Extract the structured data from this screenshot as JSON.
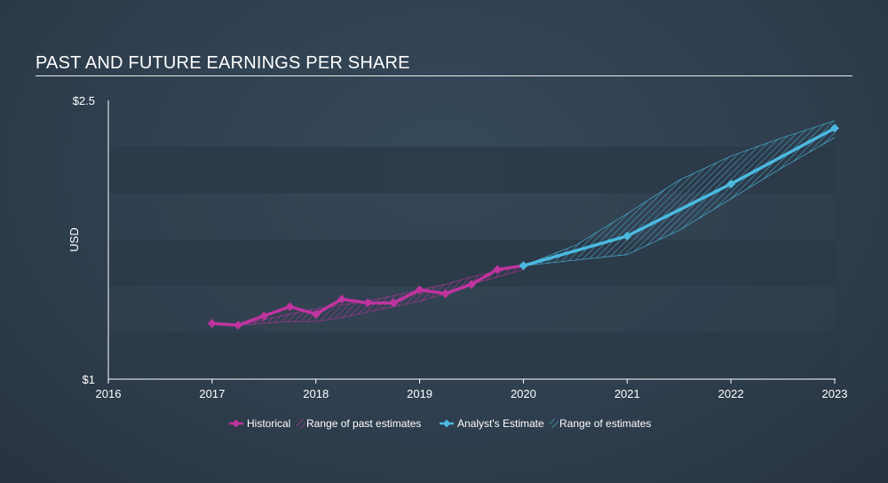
{
  "title": "PAST AND FUTURE EARNINGS PER SHARE",
  "colors": {
    "historical": "#c0349f",
    "estimate": "#4bb9e0",
    "band_dark": "#2c3a48",
    "band_light": "#33434f"
  },
  "chart_data": {
    "type": "line",
    "title": "PAST AND FUTURE EARNINGS PER SHARE",
    "ylabel": "USD",
    "xlabel": "",
    "y_tick_labels": [
      "$2.5",
      "$1"
    ],
    "ylim": [
      1.0,
      2.5
    ],
    "xlim": [
      2016.0,
      2023.0
    ],
    "x_ticks": [
      2016,
      2017,
      2018,
      2019,
      2020,
      2021,
      2022,
      2023
    ],
    "series": [
      {
        "name": "Historical",
        "x": [
          2017.0,
          2017.25,
          2017.5,
          2017.75,
          2018.0,
          2018.25,
          2018.5,
          2018.75,
          2019.0,
          2019.25,
          2019.5,
          2019.75,
          2020.0
        ],
        "y": [
          1.3,
          1.29,
          1.34,
          1.39,
          1.35,
          1.43,
          1.41,
          1.41,
          1.48,
          1.46,
          1.51,
          1.59,
          1.61
        ]
      },
      {
        "name": "Analyst's Estimate",
        "x": [
          2020.0,
          2021.0,
          2022.0,
          2023.0
        ],
        "y": [
          1.61,
          1.77,
          2.05,
          2.35
        ]
      }
    ],
    "ranges": [
      {
        "name": "Range of past estimates",
        "x": [
          2017.25,
          2017.5,
          2017.75,
          2018.0,
          2018.25,
          2018.5,
          2018.75,
          2019.0,
          2019.25,
          2019.5,
          2019.75,
          2020.0
        ],
        "low": [
          1.29,
          1.3,
          1.31,
          1.31,
          1.33,
          1.36,
          1.39,
          1.42,
          1.46,
          1.51,
          1.55,
          1.59
        ],
        "high": [
          1.29,
          1.32,
          1.35,
          1.38,
          1.4,
          1.42,
          1.45,
          1.48,
          1.51,
          1.55,
          1.58,
          1.61
        ]
      },
      {
        "name": "Range of estimates",
        "x": [
          2020.0,
          2020.5,
          2021.0,
          2021.5,
          2022.0,
          2022.5,
          2023.0
        ],
        "low": [
          1.61,
          1.64,
          1.67,
          1.8,
          1.97,
          2.14,
          2.3
        ],
        "high": [
          1.61,
          1.72,
          1.89,
          2.07,
          2.2,
          2.3,
          2.39
        ]
      }
    ],
    "legend": [
      {
        "label": "Historical",
        "kind": "line-marker",
        "color_key": "historical"
      },
      {
        "label": "Range of past estimates",
        "kind": "hatch",
        "color_key": "historical"
      },
      {
        "label": "Analyst's Estimate",
        "kind": "line-marker",
        "color_key": "estimate"
      },
      {
        "label": "Range of estimates",
        "kind": "hatch",
        "color_key": "estimate"
      }
    ],
    "legend_position": "bottom-center",
    "grid": "horizontal-bands"
  }
}
